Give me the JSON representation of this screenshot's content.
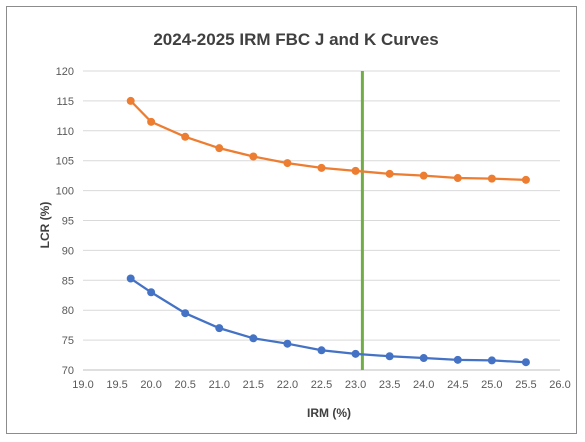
{
  "chart_data": {
    "type": "line",
    "title": "2024-2025 IRM FBC J and K Curves",
    "xlabel": "IRM (%)",
    "ylabel": "LCR (%)",
    "xlim": [
      19.0,
      26.0
    ],
    "ylim": [
      70,
      120
    ],
    "x_ticks": [
      "19.0",
      "19.5",
      "20.0",
      "20.5",
      "21.0",
      "21.5",
      "22.0",
      "22.5",
      "23.0",
      "23.5",
      "24.0",
      "24.5",
      "25.0",
      "25.5",
      "26.0"
    ],
    "y_ticks": [
      "70",
      "75",
      "80",
      "85",
      "90",
      "95",
      "100",
      "105",
      "110",
      "115",
      "120"
    ],
    "grid": "horizontal",
    "legend": "none",
    "x": [
      19.7,
      20.0,
      20.5,
      21.0,
      21.5,
      22.0,
      22.5,
      23.0,
      23.5,
      24.0,
      24.5,
      25.0,
      25.5
    ],
    "series": [
      {
        "color": "#ed7d31",
        "values": [
          115.0,
          111.5,
          109.0,
          107.1,
          105.7,
          104.6,
          103.8,
          103.3,
          102.8,
          102.5,
          102.1,
          102.0,
          101.8
        ]
      },
      {
        "color": "#4472c4",
        "values": [
          85.3,
          83.0,
          79.5,
          77.0,
          75.3,
          74.4,
          73.3,
          72.7,
          72.3,
          72.0,
          71.7,
          71.6,
          71.3
        ]
      }
    ],
    "reference_line": {
      "x": 23.1,
      "color": "#70ad47"
    }
  }
}
